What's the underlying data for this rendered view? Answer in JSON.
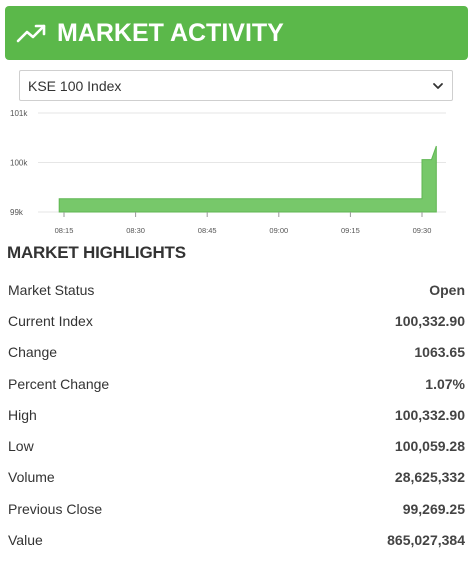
{
  "header": {
    "title": "MARKET ACTIVITY",
    "icon": "trending-up-icon",
    "background": "#5bb84a"
  },
  "index_select": {
    "selected": "KSE 100 Index",
    "icon": "chevron-down-icon"
  },
  "chart_data": {
    "type": "area",
    "color": "#77c86a",
    "y_ticks": [
      "101k",
      "100k",
      "99k"
    ],
    "x_ticks": [
      "08:15",
      "08:30",
      "08:45",
      "09:00",
      "09:15",
      "09:30"
    ],
    "ylim": [
      99000,
      101000
    ],
    "grid": true,
    "x": [
      "08:14",
      "08:15",
      "08:30",
      "08:45",
      "09:00",
      "09:15",
      "09:30",
      "09:30",
      "09:32",
      "09:33"
    ],
    "values": [
      99269.25,
      99269.25,
      99269.25,
      99269.25,
      99269.25,
      99269.25,
      99269.25,
      100059.28,
      100059.28,
      100332.9
    ]
  },
  "highlights": {
    "title": "MARKET HIGHLIGHTS",
    "rows": [
      {
        "label": "Market Status",
        "value": "Open"
      },
      {
        "label": "Current Index",
        "value": "100,332.90"
      },
      {
        "label": "Change",
        "value": "1063.65"
      },
      {
        "label": "Percent Change",
        "value": "1.07%"
      },
      {
        "label": "High",
        "value": "100,332.90"
      },
      {
        "label": "Low",
        "value": "100,059.28"
      },
      {
        "label": "Volume",
        "value": "28,625,332"
      },
      {
        "label": "Previous Close",
        "value": "99,269.25"
      },
      {
        "label": "Value",
        "value": "865,027,384"
      }
    ]
  }
}
